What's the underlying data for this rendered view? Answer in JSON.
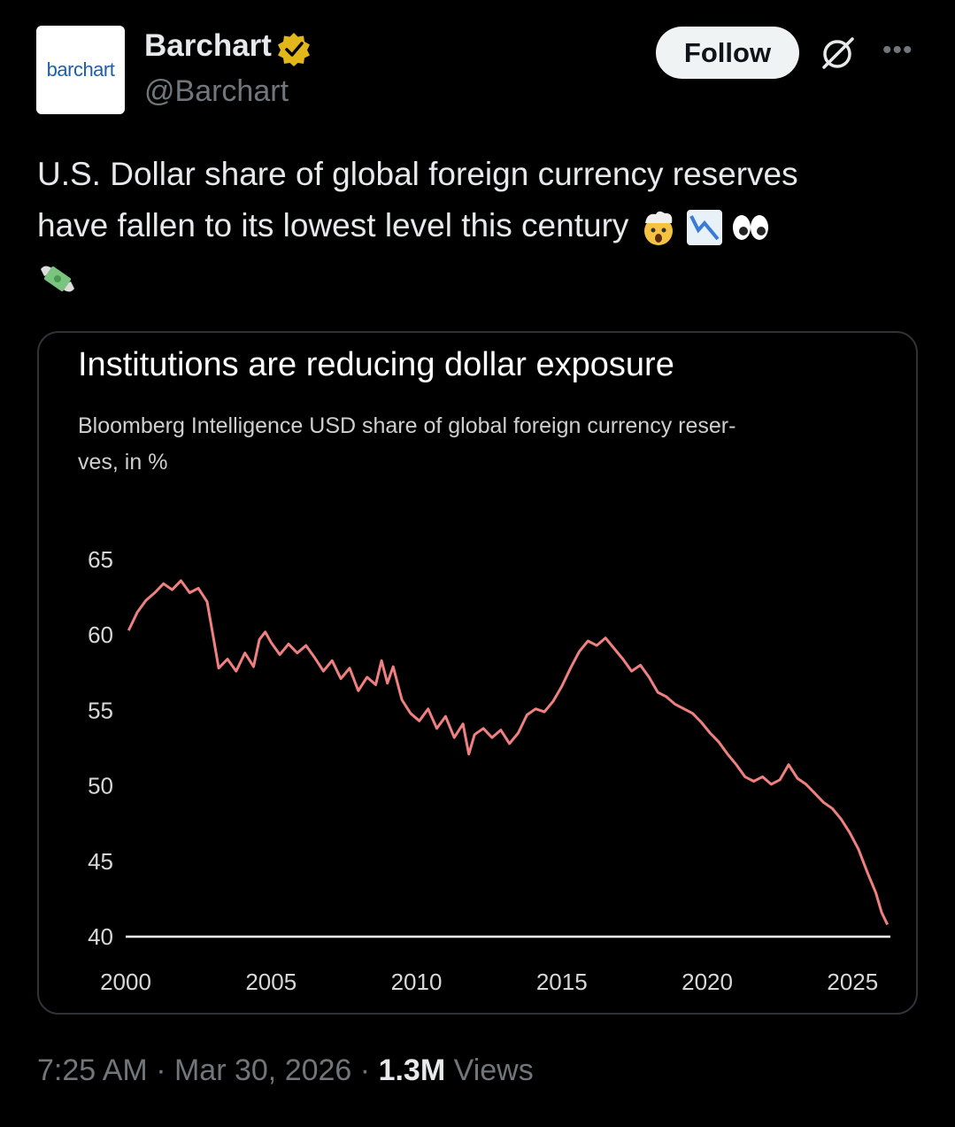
{
  "account": {
    "avatar_text": "barchart",
    "name": "Barchart",
    "handle": "@Barchart",
    "follow_label": "Follow"
  },
  "tweet": {
    "text_line1": "U.S. Dollar share of global foreign currency reserves",
    "text_line2": "have fallen to its lowest level this century",
    "emojis": [
      "exploding-head-icon",
      "chart-decreasing-icon",
      "eyes-icon",
      "money-with-wings-icon"
    ]
  },
  "chart_data": {
    "type": "line",
    "title": "Institutions are reducing dollar exposure",
    "subtitle": "Bloomberg Intelligence USD share of global foreign currency reser- ves, in %",
    "subtitle_line1": "Bloomberg Intelligence USD share of global foreign currency reser-",
    "subtitle_line2": "ves, in %",
    "xlabel": "",
    "ylabel": "",
    "xlim": [
      2000,
      2026.3
    ],
    "ylim": [
      40,
      65
    ],
    "xticks": [
      "2000",
      "2005",
      "2010",
      "2015",
      "2020",
      "2025"
    ],
    "yticks": [
      "65",
      "60",
      "55",
      "50",
      "45",
      "40"
    ],
    "line_color": "#f08080",
    "grid": false,
    "series": [
      {
        "x": [
          2000.1,
          2000.4,
          2000.7,
          2001.0,
          2001.3,
          2001.6,
          2001.9,
          2002.2,
          2002.5,
          2002.8,
          2003.0,
          2003.2,
          2003.5,
          2003.8,
          2004.1,
          2004.4,
          2004.6,
          2004.8,
          2005.0,
          2005.3,
          2005.6,
          2005.9,
          2006.2,
          2006.5,
          2006.8,
          2007.1,
          2007.4,
          2007.7,
          2008.0,
          2008.3,
          2008.6,
          2008.8,
          2009.0,
          2009.2,
          2009.5,
          2009.8,
          2010.1,
          2010.4,
          2010.7,
          2011.0,
          2011.3,
          2011.6,
          2011.8,
          2012.0,
          2012.3,
          2012.6,
          2012.9,
          2013.2,
          2013.5,
          2013.8,
          2014.1,
          2014.4,
          2014.7,
          2015.0,
          2015.3,
          2015.6,
          2015.9,
          2016.2,
          2016.5,
          2016.8,
          2017.1,
          2017.4,
          2017.7,
          2018.0,
          2018.3,
          2018.6,
          2018.9,
          2019.2,
          2019.5,
          2019.8,
          2020.1,
          2020.4,
          2020.7,
          2021.0,
          2021.3,
          2021.6,
          2021.9,
          2022.2,
          2022.5,
          2022.8,
          2023.1,
          2023.4,
          2023.7,
          2024.0,
          2024.3,
          2024.6,
          2024.9,
          2025.2,
          2025.5,
          2025.8,
          2026.0,
          2026.2
        ],
        "y": [
          60.3,
          61.5,
          62.3,
          62.8,
          63.4,
          63.0,
          63.6,
          62.8,
          63.1,
          62.2,
          60.0,
          57.8,
          58.4,
          57.6,
          58.8,
          57.9,
          59.7,
          60.2,
          59.5,
          58.7,
          59.4,
          58.8,
          59.3,
          58.5,
          57.6,
          58.3,
          57.1,
          57.8,
          56.3,
          57.2,
          56.7,
          58.3,
          56.8,
          57.9,
          55.7,
          54.8,
          54.3,
          55.1,
          53.8,
          54.6,
          53.2,
          54.1,
          52.1,
          53.4,
          53.8,
          53.2,
          53.7,
          52.8,
          53.5,
          54.7,
          55.1,
          54.9,
          55.6,
          56.6,
          57.8,
          58.9,
          59.6,
          59.3,
          59.8,
          59.1,
          58.4,
          57.6,
          58.0,
          57.2,
          56.2,
          55.9,
          55.4,
          55.1,
          54.8,
          54.2,
          53.5,
          52.9,
          52.1,
          51.4,
          50.6,
          50.3,
          50.6,
          50.1,
          50.4,
          51.4,
          50.5,
          50.1,
          49.5,
          48.9,
          48.5,
          47.8,
          46.9,
          45.8,
          44.3,
          42.9,
          41.6,
          40.8
        ]
      }
    ]
  },
  "footer": {
    "time": "7:25 AM",
    "separator": "·",
    "date": "Mar 30, 2026",
    "views_count": "1.3M",
    "views_label": "Views"
  },
  "colors": {
    "background": "#000000",
    "text": "#e7e9ea",
    "muted": "#71767b",
    "verified_gold": "#e2b719",
    "chart_line": "#f08080"
  }
}
